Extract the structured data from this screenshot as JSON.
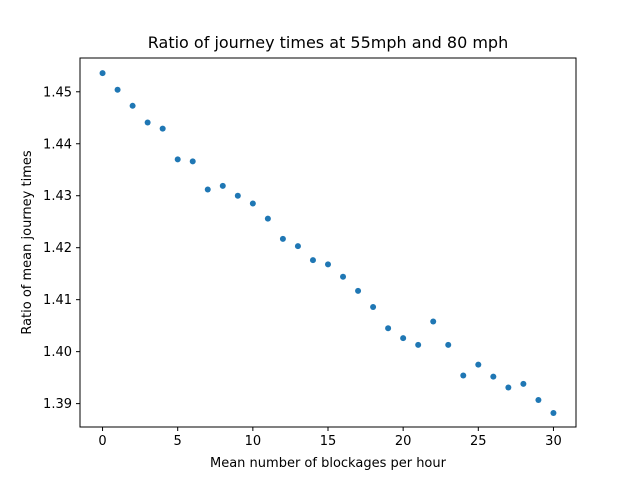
{
  "chart_data": {
    "type": "scatter",
    "title": "Ratio of journey times at 55mph and 80 mph",
    "xlabel": "Mean number of blockages per hour",
    "ylabel": "Ratio of mean journey times",
    "xlim": [
      -1.5,
      31.5
    ],
    "ylim": [
      1.3855,
      1.4565
    ],
    "xticks": [
      0,
      5,
      10,
      15,
      20,
      25,
      30
    ],
    "xtick_labels": [
      "0",
      "5",
      "10",
      "15",
      "20",
      "25",
      "30"
    ],
    "yticks": [
      1.39,
      1.4,
      1.41,
      1.42,
      1.43,
      1.44,
      1.45
    ],
    "ytick_labels": [
      "1.39",
      "1.40",
      "1.41",
      "1.42",
      "1.43",
      "1.44",
      "1.45"
    ],
    "grid": false,
    "marker_color": "#1f77b4",
    "x": [
      0,
      1,
      2,
      3,
      4,
      5,
      6,
      7,
      8,
      9,
      10,
      11,
      12,
      13,
      14,
      15,
      16,
      17,
      18,
      19,
      20,
      21,
      22,
      23,
      24,
      25,
      26,
      27,
      28,
      29,
      30
    ],
    "y": [
      1.4536,
      1.4504,
      1.4473,
      1.4441,
      1.4429,
      1.437,
      1.4366,
      1.4312,
      1.4319,
      1.43,
      1.4285,
      1.4256,
      1.4217,
      1.4203,
      1.4176,
      1.4168,
      1.4144,
      1.4117,
      1.4086,
      1.4045,
      1.4026,
      1.4013,
      1.4058,
      1.4013,
      1.3954,
      1.3975,
      1.3952,
      1.3931,
      1.3938,
      1.3907,
      1.3882
    ]
  }
}
